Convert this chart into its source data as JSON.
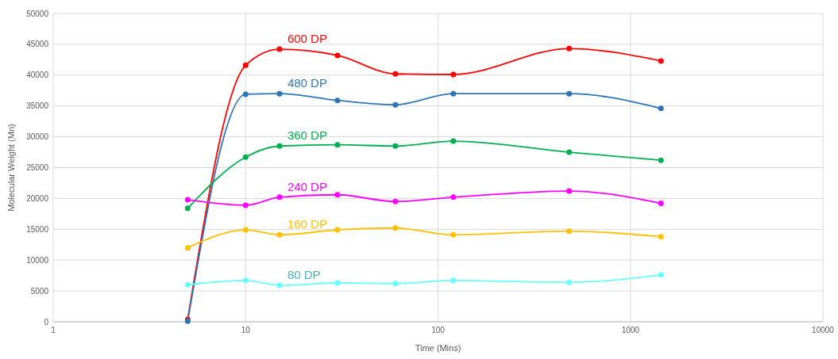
{
  "chart_data": {
    "type": "line",
    "xlabel": "Time (Mins)",
    "ylabel": "Molecular Weight (Mn)",
    "x": [
      5,
      10,
      15,
      30,
      60,
      120,
      480,
      1440
    ],
    "log": "x",
    "xlim": [
      1,
      10000
    ],
    "xticks": [
      1,
      10,
      100,
      1000,
      10000
    ],
    "ylim": [
      0,
      50000
    ],
    "yticks": [
      0,
      5000,
      10000,
      15000,
      20000,
      25000,
      30000,
      35000,
      40000,
      45000,
      50000
    ],
    "grid": true,
    "marker": "circle",
    "line_style": "solid",
    "series": [
      {
        "name": "600 DP",
        "color": "#ff0000",
        "values": [
          400,
          41600,
          44200,
          43200,
          40200,
          40100,
          44300,
          42300
        ]
      },
      {
        "name": "480 DP",
        "color": "#2e75b6",
        "values": [
          100,
          36900,
          37000,
          35900,
          35200,
          37000,
          37000,
          34600
        ]
      },
      {
        "name": "360 DP",
        "color": "#00b050",
        "values": [
          18400,
          26700,
          28500,
          28700,
          28500,
          29300,
          27500,
          26200
        ]
      },
      {
        "name": "240 DP",
        "color": "#ff00ff",
        "values": [
          19800,
          18900,
          20200,
          20600,
          19500,
          20200,
          21200,
          19200
        ]
      },
      {
        "name": "160 DP",
        "color": "#ffc000",
        "values": [
          12000,
          14900,
          14100,
          14900,
          15200,
          14100,
          14700,
          13800
        ]
      },
      {
        "name": "80 DP",
        "color": "#66ffff",
        "values": [
          6000,
          6700,
          5900,
          6300,
          6200,
          6700,
          6400,
          7600
        ]
      }
    ]
  }
}
